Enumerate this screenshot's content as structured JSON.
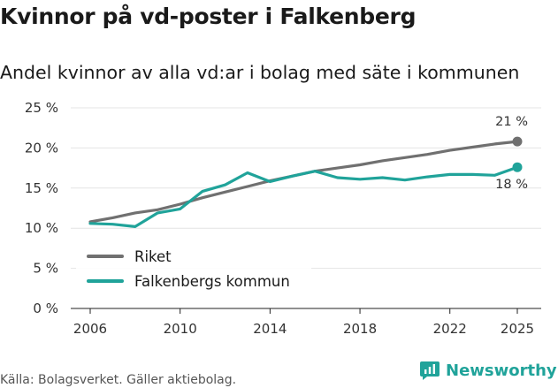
{
  "title": "Kvinnor på vd-poster i Falkenberg",
  "subtitle": "Andel kvinnor av alla vd:ar i bolag med säte i kommunen",
  "source": "Källa: Bolagsverket. Gäller aktiebolag.",
  "brand": {
    "name": "Newsworthy",
    "icon": "newsworthy-logo-icon",
    "color": "#20a39a"
  },
  "chart_data": {
    "type": "line",
    "title": "Kvinnor på vd-poster i Falkenberg",
    "subtitle": "Andel kvinnor av alla vd:ar i bolag med säte i kommunen",
    "xlabel": "",
    "ylabel": "",
    "ylim": [
      0,
      25
    ],
    "xlim": [
      2006,
      2025
    ],
    "y_ticks": [
      0,
      5,
      10,
      15,
      20,
      25
    ],
    "y_tick_labels": [
      "0 %",
      "5 %",
      "10 %",
      "15 %",
      "20 %",
      "25 %"
    ],
    "x_ticks": [
      2006,
      2010,
      2014,
      2018,
      2022,
      2025
    ],
    "x_tick_labels": [
      "2006",
      "2010",
      "2014",
      "2018",
      "2022",
      "2025"
    ],
    "grid": true,
    "legend_position": "bottom-left",
    "x": [
      2006,
      2007,
      2008,
      2009,
      2010,
      2011,
      2012,
      2013,
      2014,
      2015,
      2016,
      2017,
      2018,
      2019,
      2020,
      2021,
      2022,
      2023,
      2024,
      2025
    ],
    "series": [
      {
        "name": "Riket",
        "color": "#707070",
        "values": [
          10.8,
          11.3,
          11.9,
          12.3,
          13.0,
          13.8,
          14.5,
          15.2,
          15.9,
          16.5,
          17.1,
          17.5,
          17.9,
          18.4,
          18.8,
          19.2,
          19.7,
          20.1,
          20.5,
          20.8
        ],
        "end_label": "21 %"
      },
      {
        "name": "Falkenbergs kommun",
        "color": "#20a39a",
        "values": [
          10.6,
          10.5,
          10.2,
          11.9,
          12.4,
          14.6,
          15.4,
          16.9,
          15.8,
          16.5,
          17.1,
          16.3,
          16.1,
          16.3,
          16.0,
          16.4,
          16.7,
          16.7,
          16.6,
          17.6
        ],
        "end_label": "18 %"
      }
    ]
  }
}
